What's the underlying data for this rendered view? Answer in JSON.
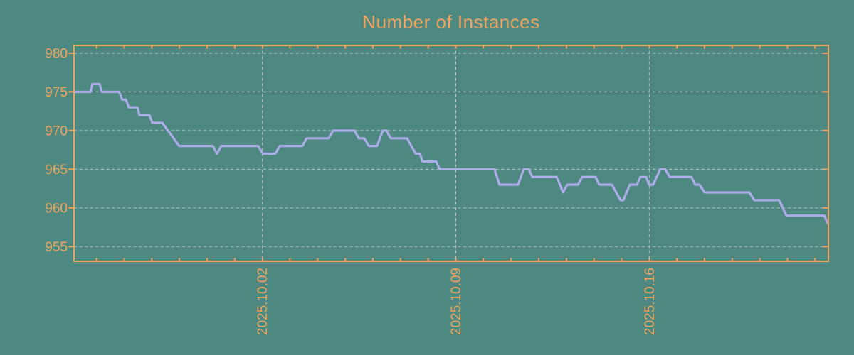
{
  "colors": {
    "background": "#4D8881",
    "accent_orange": "#F0A45E",
    "line_purple": "#ACACE8",
    "grid_gray": "#C3C3C8"
  },
  "chart_data": {
    "type": "line",
    "title": "Number of Instances",
    "xlabel": "",
    "ylabel": "",
    "grid": true,
    "legend": "none",
    "ylim": [
      953.1,
      981.0
    ],
    "yticks": [
      955,
      960,
      965,
      970,
      975,
      980
    ],
    "x_range_days": [
      -0.82,
      26.46
    ],
    "x_major_ticks": [
      {
        "day": 6,
        "label": "2025.10.02"
      },
      {
        "day": 13,
        "label": "2025.10.09"
      },
      {
        "day": 20,
        "label": "2025.10.16"
      }
    ],
    "x_minor_ticks_days": {
      "first": 0,
      "last": 26,
      "step": 1
    },
    "series": [
      {
        "name": "instances",
        "points_day_value": [
          [
            -0.82,
            975
          ],
          [
            -0.22,
            975
          ],
          [
            -0.15,
            976
          ],
          [
            0.11,
            976
          ],
          [
            0.19,
            975
          ],
          [
            0.82,
            975
          ],
          [
            0.93,
            974
          ],
          [
            1.06,
            974
          ],
          [
            1.17,
            973
          ],
          [
            1.48,
            973
          ],
          [
            1.55,
            972
          ],
          [
            1.91,
            972
          ],
          [
            2.02,
            971
          ],
          [
            2.38,
            971
          ],
          [
            2.99,
            968
          ],
          [
            4.21,
            968
          ],
          [
            4.36,
            967
          ],
          [
            4.51,
            968
          ],
          [
            5.85,
            968
          ],
          [
            6.01,
            967
          ],
          [
            6.47,
            967
          ],
          [
            6.63,
            968
          ],
          [
            7.45,
            968
          ],
          [
            7.6,
            969
          ],
          [
            8.4,
            969
          ],
          [
            8.56,
            970
          ],
          [
            9.33,
            970
          ],
          [
            9.49,
            969
          ],
          [
            9.69,
            969
          ],
          [
            9.85,
            968
          ],
          [
            10.15,
            968
          ],
          [
            10.36,
            970
          ],
          [
            10.49,
            970
          ],
          [
            10.64,
            969
          ],
          [
            11.24,
            969
          ],
          [
            11.39,
            968
          ],
          [
            11.55,
            967
          ],
          [
            11.7,
            967
          ],
          [
            11.8,
            966
          ],
          [
            12.29,
            966
          ],
          [
            12.42,
            965
          ],
          [
            14.4,
            965
          ],
          [
            14.58,
            963
          ],
          [
            15.25,
            963
          ],
          [
            15.46,
            965
          ],
          [
            15.64,
            965
          ],
          [
            15.77,
            964
          ],
          [
            16.65,
            964
          ],
          [
            16.88,
            962
          ],
          [
            17.03,
            963
          ],
          [
            17.42,
            963
          ],
          [
            17.57,
            964
          ],
          [
            18.06,
            964
          ],
          [
            18.19,
            963
          ],
          [
            18.65,
            963
          ],
          [
            18.96,
            961
          ],
          [
            19.06,
            961
          ],
          [
            19.3,
            963
          ],
          [
            19.55,
            963
          ],
          [
            19.68,
            964
          ],
          [
            19.89,
            964
          ],
          [
            19.99,
            963
          ],
          [
            20.14,
            963
          ],
          [
            20.4,
            965
          ],
          [
            20.58,
            965
          ],
          [
            20.74,
            964
          ],
          [
            21.53,
            964
          ],
          [
            21.66,
            963
          ],
          [
            21.82,
            963
          ],
          [
            22.0,
            962
          ],
          [
            23.62,
            962
          ],
          [
            23.8,
            961
          ],
          [
            24.7,
            961
          ],
          [
            24.96,
            959
          ],
          [
            26.33,
            959
          ],
          [
            26.46,
            958
          ]
        ]
      }
    ]
  }
}
